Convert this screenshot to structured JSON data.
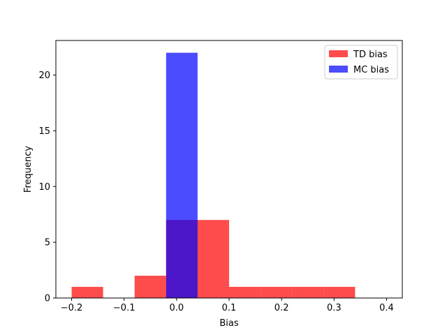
{
  "chart_data": {
    "type": "bar",
    "subtype": "histogram",
    "xlabel": "Bias",
    "ylabel": "Frequency",
    "xlim": [
      -0.23,
      0.43
    ],
    "ylim": [
      0,
      23.1
    ],
    "xticks": [
      -0.2,
      -0.1,
      0.0,
      0.1,
      0.2,
      0.3,
      0.4
    ],
    "xtick_labels": [
      "−0.2",
      "−0.1",
      "0.0",
      "0.1",
      "0.2",
      "0.3",
      "0.4"
    ],
    "yticks": [
      0,
      5,
      10,
      15,
      20
    ],
    "ytick_labels": [
      "0",
      "5",
      "10",
      "15",
      "20"
    ],
    "grid": false,
    "legend_position": "top-right",
    "series": [
      {
        "name": "TD bias",
        "color": "#ff0000",
        "opacity": 0.7,
        "bins": [
          {
            "x0": -0.2,
            "x1": -0.14,
            "count": 1
          },
          {
            "x0": -0.14,
            "x1": -0.08,
            "count": 0
          },
          {
            "x0": -0.08,
            "x1": -0.02,
            "count": 2
          },
          {
            "x0": -0.02,
            "x1": 0.04,
            "count": 7
          },
          {
            "x0": 0.04,
            "x1": 0.1,
            "count": 7
          },
          {
            "x0": 0.1,
            "x1": 0.16,
            "count": 1
          },
          {
            "x0": 0.16,
            "x1": 0.22,
            "count": 1
          },
          {
            "x0": 0.22,
            "x1": 0.28,
            "count": 1
          },
          {
            "x0": 0.28,
            "x1": 0.34,
            "count": 1
          }
        ]
      },
      {
        "name": "MC bias",
        "color": "#0000ff",
        "opacity": 0.7,
        "bins": [
          {
            "x0": -0.02,
            "x1": 0.04,
            "count": 22
          }
        ]
      }
    ]
  }
}
